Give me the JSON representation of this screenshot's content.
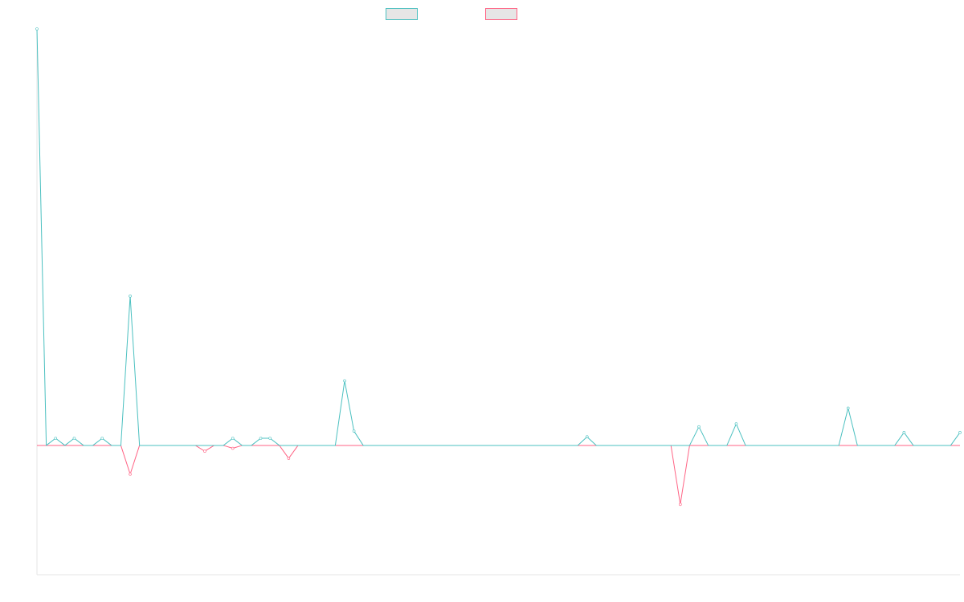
{
  "chart_data": {
    "type": "line",
    "title": "",
    "xlabel": "",
    "ylabel": "",
    "x_count": 100,
    "ylim": [
      -4.5,
      14.5
    ],
    "grid": false,
    "legend_placement": "top-center",
    "series": [
      {
        "color": "#4bc0c0",
        "values": [
          14.5,
          0,
          0.25,
          0,
          0.25,
          0,
          0,
          0.25,
          0,
          0,
          5.2,
          0,
          0,
          0,
          0,
          0,
          0,
          0,
          0,
          0,
          0,
          0.25,
          0,
          0,
          0.25,
          0.25,
          0,
          0,
          0,
          0,
          0,
          0,
          0,
          2.25,
          0.5,
          0,
          0,
          0,
          0,
          0,
          0,
          0,
          0,
          0,
          0,
          0,
          0,
          0,
          0,
          0,
          0,
          0,
          0,
          0,
          0,
          0,
          0,
          0,
          0,
          0.3,
          0,
          0,
          0,
          0,
          0,
          0,
          0,
          0,
          0,
          0,
          0,
          0.65,
          0,
          0,
          0,
          0.75,
          0,
          0,
          0,
          0,
          0,
          0,
          0,
          0,
          0,
          0,
          0,
          1.3,
          0,
          0,
          0,
          0,
          0,
          0.45,
          0,
          0,
          0,
          0,
          0,
          0.45
        ]
      },
      {
        "color": "#ff6384",
        "values": [
          0,
          0,
          0,
          0,
          0,
          0,
          0,
          0,
          0,
          0,
          -1,
          0,
          0,
          0,
          0,
          0,
          0,
          0,
          -0.2,
          0,
          0,
          -0.1,
          0,
          0,
          0,
          0,
          0,
          -0.45,
          0,
          0,
          0,
          0,
          0,
          0,
          0,
          0,
          0,
          0,
          0,
          0,
          0,
          0,
          0,
          0,
          0,
          0,
          0,
          0,
          0,
          0,
          0,
          0,
          0,
          0,
          0,
          0,
          0,
          0,
          0,
          0,
          0,
          0,
          0,
          0,
          0,
          0,
          0,
          0,
          0,
          -2.05,
          0,
          0,
          0,
          0,
          0,
          0,
          0,
          0,
          0,
          0,
          0,
          0,
          0,
          0,
          0,
          0,
          0,
          0,
          0,
          0,
          0,
          0,
          0,
          0,
          0,
          0,
          0,
          0,
          0,
          0
        ]
      }
    ]
  }
}
